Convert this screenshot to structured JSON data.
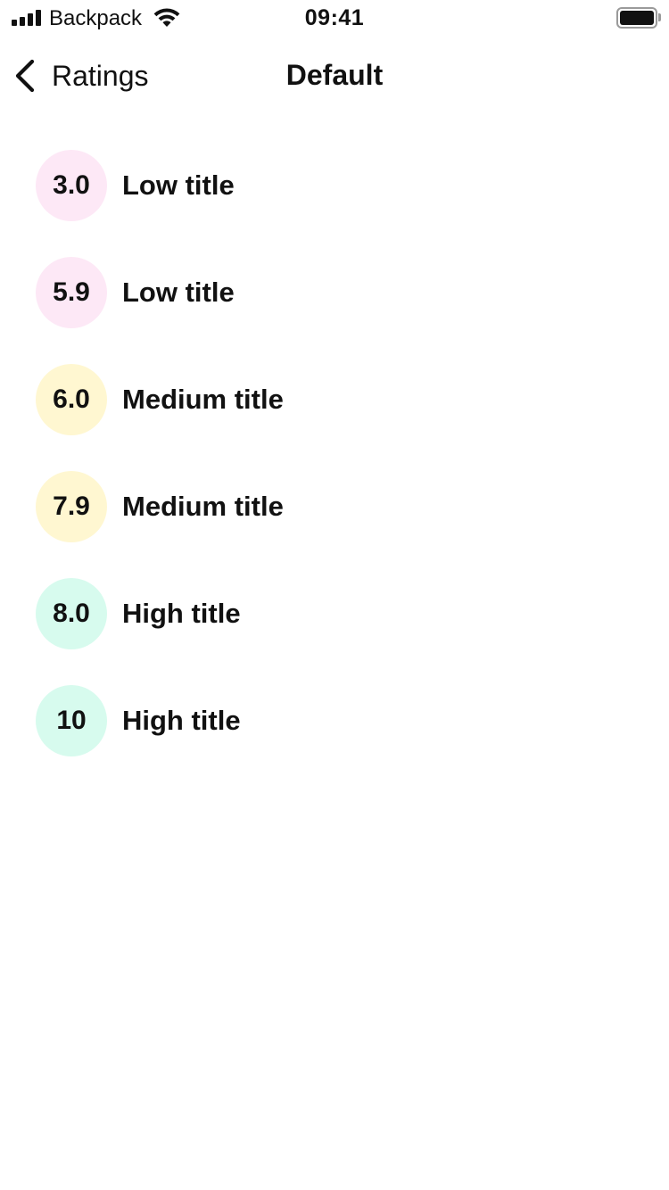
{
  "status_bar": {
    "carrier": "Backpack",
    "time": "09:41",
    "icons": [
      "signal-icon",
      "wifi-icon",
      "battery-icon"
    ]
  },
  "nav": {
    "back_label": "Ratings",
    "title": "Default",
    "back_icon": "chevron-left-icon"
  },
  "colors": {
    "low": "#fde8f6",
    "medium": "#fff7d1",
    "high": "#d7fbee",
    "text": "#111111"
  },
  "ratings": [
    {
      "value": "3.0",
      "title": "Low title",
      "level": "low"
    },
    {
      "value": "5.9",
      "title": "Low title",
      "level": "low"
    },
    {
      "value": "6.0",
      "title": "Medium title",
      "level": "medium"
    },
    {
      "value": "7.9",
      "title": "Medium title",
      "level": "medium"
    },
    {
      "value": "8.0",
      "title": "High title",
      "level": "high"
    },
    {
      "value": "10",
      "title": "High title",
      "level": "high"
    }
  ]
}
